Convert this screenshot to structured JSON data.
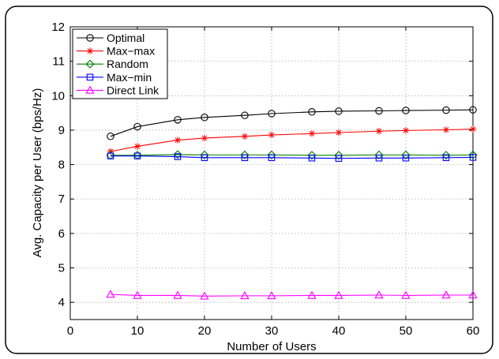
{
  "chart_data": {
    "type": "line",
    "xlabel": "Number of Users",
    "ylabel": "Avg. Capacity per User (bps/Hz)",
    "xlim": [
      0,
      60
    ],
    "ylim": [
      3.5,
      12
    ],
    "xticks": [
      0,
      10,
      20,
      30,
      40,
      50,
      60
    ],
    "yticks": [
      4,
      5,
      6,
      7,
      8,
      9,
      10,
      11,
      12
    ],
    "grid": true,
    "legend_position": "top-left",
    "x": [
      6,
      10,
      16,
      20,
      26,
      30,
      36,
      40,
      46,
      50,
      56,
      60
    ],
    "series": [
      {
        "name": "Optimal",
        "color": "#000000",
        "marker": "circle",
        "values": [
          8.82,
          9.1,
          9.3,
          9.37,
          9.43,
          9.48,
          9.53,
          9.55,
          9.56,
          9.57,
          9.58,
          9.59
        ]
      },
      {
        "name": "Max−max",
        "color": "#ff0000",
        "marker": "star",
        "values": [
          8.38,
          8.53,
          8.71,
          8.77,
          8.82,
          8.86,
          8.9,
          8.93,
          8.97,
          8.99,
          9.01,
          9.03
        ]
      },
      {
        "name": "Random",
        "color": "#008000",
        "marker": "diamond",
        "values": [
          8.27,
          8.27,
          8.29,
          8.28,
          8.28,
          8.28,
          8.27,
          8.27,
          8.28,
          8.28,
          8.27,
          8.28
        ]
      },
      {
        "name": "Max−min",
        "color": "#0000ff",
        "marker": "square",
        "values": [
          8.25,
          8.25,
          8.23,
          8.2,
          8.2,
          8.2,
          8.19,
          8.18,
          8.19,
          8.19,
          8.2,
          8.21
        ]
      },
      {
        "name": "Direct Link",
        "color": "#ff00ff",
        "marker": "triangle",
        "values": [
          4.23,
          4.2,
          4.2,
          4.18,
          4.19,
          4.19,
          4.2,
          4.2,
          4.21,
          4.2,
          4.21,
          4.21
        ]
      }
    ]
  }
}
